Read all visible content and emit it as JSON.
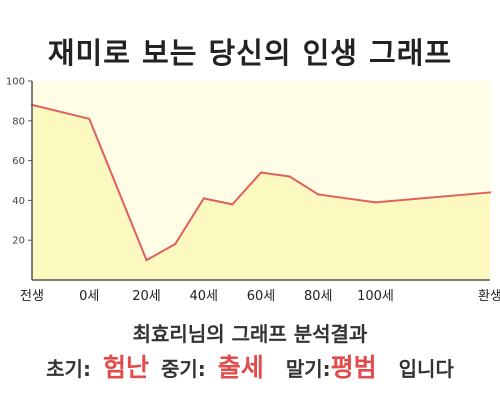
{
  "title": "재미로 보는 당신의 인생 그래프",
  "result": {
    "heading": "최효리님의 그래프 분석결과",
    "early_label": "초기:",
    "early_value": "험난",
    "mid_label": "중기:",
    "mid_value": "출세",
    "late_label": "말기:",
    "late_value": "평범",
    "suffix": "입니다",
    "highlight_color": "#e34b4b"
  },
  "chart_data": {
    "type": "area",
    "x_tick_labels": [
      "전생",
      "0세",
      "20세",
      "40세",
      "60세",
      "80세",
      "100세",
      "환생"
    ],
    "y_ticks": [
      20,
      40,
      60,
      80,
      100
    ],
    "ylim": [
      0,
      100
    ],
    "grid": false,
    "colors": {
      "line": "#e06060",
      "fill": "#fbf9bf",
      "plot_bg": "#fffde6"
    },
    "points": [
      {
        "x": "전생",
        "y": 88
      },
      {
        "x": "0세",
        "y": 81
      },
      {
        "x": "20세",
        "y": 10
      },
      {
        "x": "30세",
        "y": 18
      },
      {
        "x": "40세",
        "y": 41
      },
      {
        "x": "50세",
        "y": 38
      },
      {
        "x": "60세",
        "y": 54
      },
      {
        "x": "70세",
        "y": 52
      },
      {
        "x": "80세",
        "y": 43
      },
      {
        "x": "100세",
        "y": 39
      },
      {
        "x": "환생",
        "y": 44
      }
    ]
  }
}
